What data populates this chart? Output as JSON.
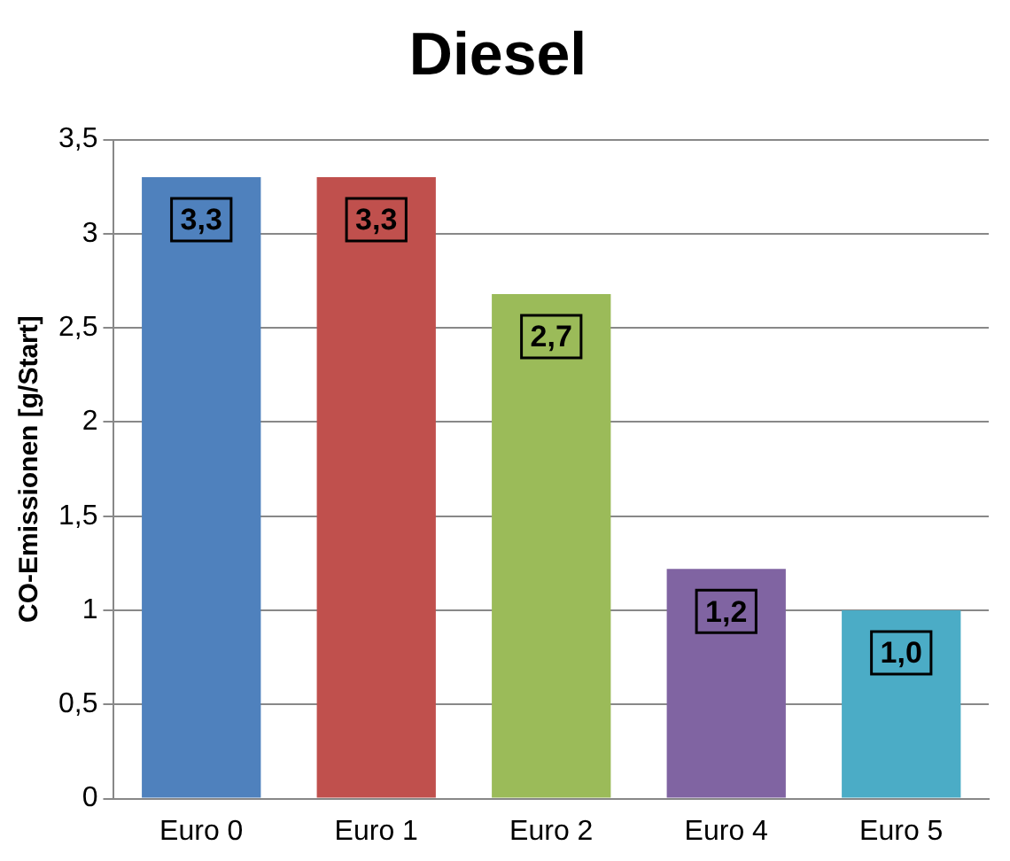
{
  "chart_data": {
    "type": "bar",
    "title": "Diesel",
    "ylabel": "CO-Emissionen [g/Start]",
    "categories": [
      "Euro 0",
      "Euro 1",
      "Euro 2",
      "Euro 4",
      "Euro 5"
    ],
    "values": [
      3.3,
      3.3,
      2.68,
      1.22,
      1.0
    ],
    "colors": [
      "#4f81bd",
      "#c0504d",
      "#9bbb59",
      "#8064a2",
      "#4bacc6"
    ],
    "value_labels": [
      "3,3",
      "3,3",
      "2,7",
      "1,2",
      "1,0"
    ],
    "ylim": [
      0,
      3.5
    ],
    "yticks": [
      0,
      {
        "value": 0.5,
        "label": "0,5"
      },
      1,
      {
        "value": 1.5,
        "label": "1,5"
      },
      2,
      {
        "value": 2.5,
        "label": "2,5"
      },
      3,
      {
        "value": 3.5,
        "label": "3,5"
      }
    ],
    "grid": "y",
    "legend": false
  }
}
